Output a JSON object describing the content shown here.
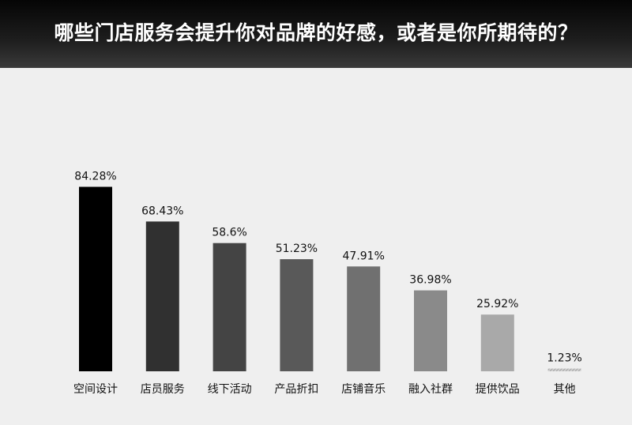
{
  "header": {
    "title": "哪些门店服务会提升你对品牌的好感，或者是你所期待的？"
  },
  "chart_data": {
    "type": "bar",
    "title": "哪些门店服务会提升你对品牌的好感，或者是你所期待的？",
    "categories": [
      "空间设计",
      "店员服务",
      "线下活动",
      "产品折扣",
      "店铺音乐",
      "融入社群",
      "提供饮品",
      "其他"
    ],
    "values": [
      84.28,
      68.43,
      58.6,
      51.23,
      47.91,
      36.98,
      25.92,
      1.23
    ],
    "value_labels": [
      "84.28%",
      "68.43%",
      "58.6%",
      "51.23%",
      "47.91%",
      "36.98%",
      "25.92%",
      "1.23%"
    ],
    "colors": [
      "#000000",
      "#303030",
      "#444444",
      "#595959",
      "#707070",
      "#8a8a8a",
      "#a9a9a9",
      "#c6c6c6"
    ],
    "ylim": [
      0,
      100
    ],
    "grid": false,
    "legend": "none"
  }
}
